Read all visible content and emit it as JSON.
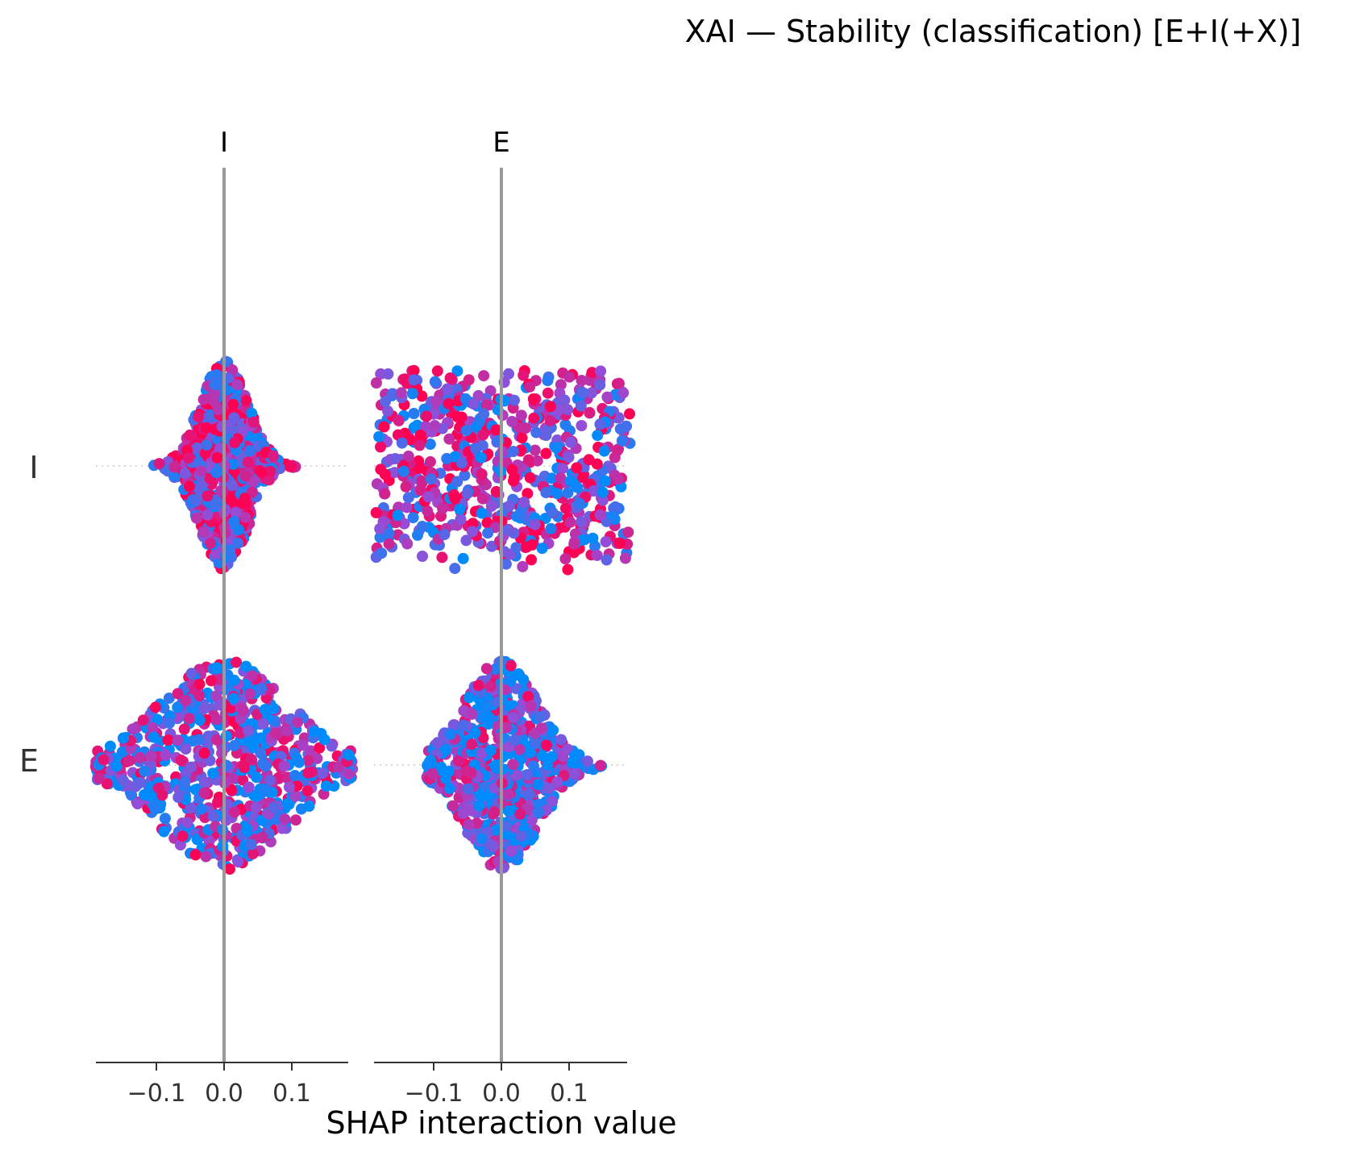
{
  "title": "XAI — Stability (classification) [E+I(+X)]",
  "chart_data": {
    "type": "scatter",
    "subtype": "shap-interaction-beeswarm",
    "title": "XAI — Stability (classification) [E+I(+X)]",
    "xlabel": "SHAP interaction value",
    "rows": [
      "I",
      "E"
    ],
    "columns": [
      "I",
      "E"
    ],
    "xlim": [
      -0.19,
      0.19
    ],
    "xticks": [
      -0.1,
      0.0,
      0.1
    ],
    "xtick_labels": [
      "−0.1",
      "0.0",
      "0.1"
    ],
    "grid": false,
    "legend": "none",
    "colormap": {
      "low": "#008bfb",
      "high": "#ff0052",
      "mid": "#9a4bd6"
    },
    "panels": [
      {
        "row": "I",
        "col": "I",
        "range": [
          -0.11,
          0.165
        ],
        "core": [
          -0.065,
          0.075
        ],
        "center": 0.0,
        "spread": 0.03,
        "peak_height": 1.0,
        "shape": "diamond",
        "color_bias": 0.6
      },
      {
        "row": "I",
        "col": "E",
        "range": [
          -0.185,
          0.19
        ],
        "core": [
          -0.185,
          0.19
        ],
        "center": 0.0,
        "spread": 0.6,
        "peak_height": 1.0,
        "shape": "flat",
        "color_bias": 0.55
      },
      {
        "row": "E",
        "col": "I",
        "range": [
          -0.19,
          0.19
        ],
        "core": [
          -0.19,
          0.19
        ],
        "center": 0.0,
        "spread": 0.07,
        "peak_height": 1.0,
        "shape": "diamond",
        "color_bias": 0.4
      },
      {
        "row": "E",
        "col": "E",
        "range": [
          -0.11,
          0.15
        ],
        "core": [
          -0.11,
          0.11
        ],
        "center": 0.0,
        "spread": 0.05,
        "peak_height": 1.0,
        "shape": "diamond",
        "color_bias": 0.35
      }
    ]
  }
}
